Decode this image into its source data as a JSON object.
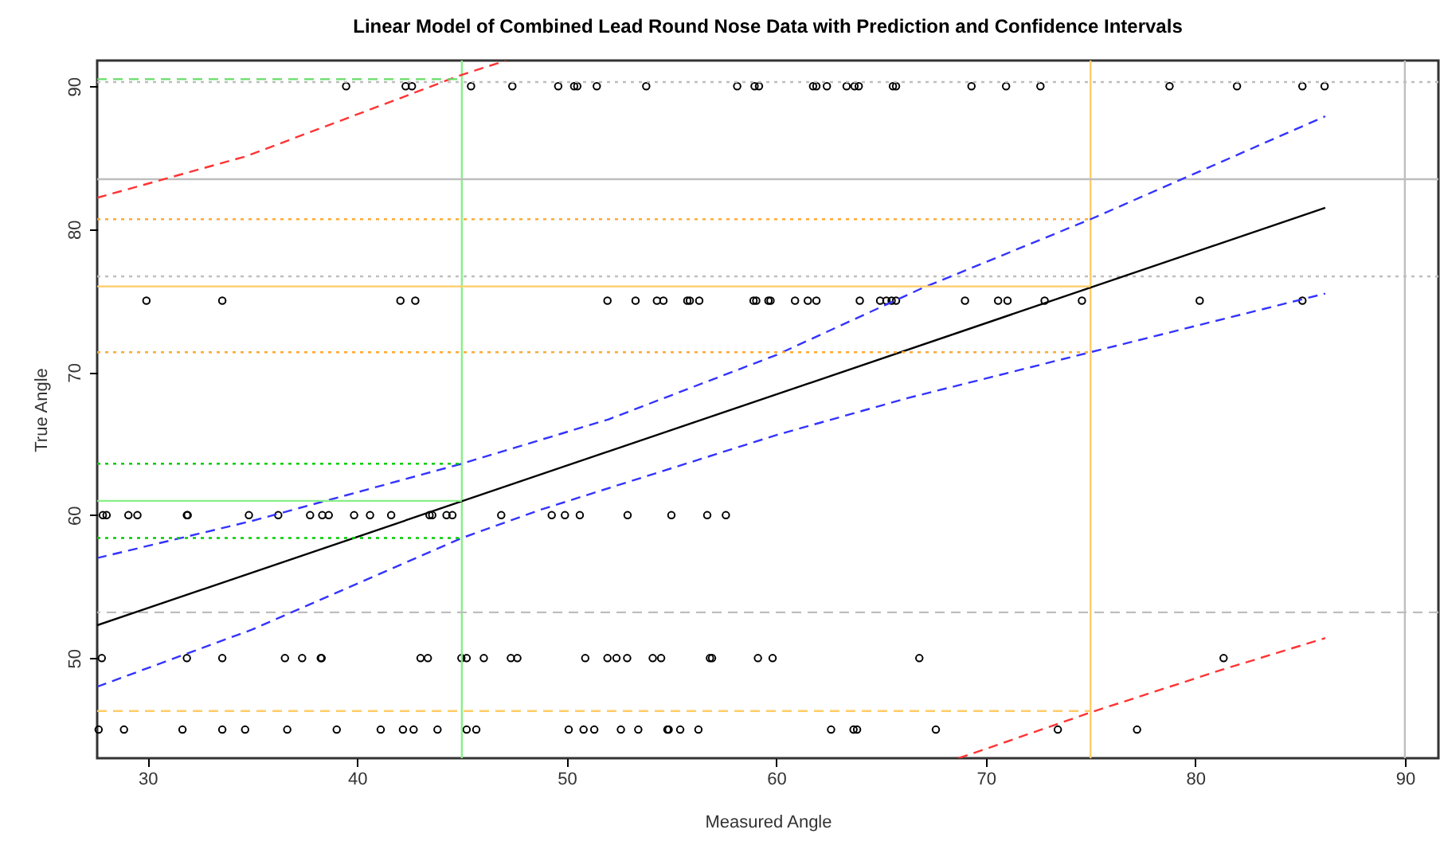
{
  "chart_data": {
    "type": "scatter",
    "title": "Linear Model of Combined Lead Round Nose Data with Prediction and Confidence Intervals",
    "xlabel": "Measured Angle",
    "ylabel": "True Angle",
    "xlim": [
      27.6,
      91.6
    ],
    "ylim": [
      43,
      91.8
    ],
    "xticks": [
      30,
      40,
      50,
      60,
      70,
      80,
      90
    ],
    "yticks": [
      50,
      60,
      70,
      80,
      90
    ],
    "grid": false,
    "series": [
      {
        "marker": "circle",
        "color": "#000000",
        "x": [
          39.48,
          42.32,
          42.62,
          45.44,
          47.41,
          49.6,
          50.36,
          50.51,
          51.44,
          53.8,
          58.14,
          58.97,
          59.18,
          61.76,
          61.92,
          62.42,
          63.36,
          63.74,
          63.94,
          65.57,
          65.72,
          69.32,
          70.97,
          72.61,
          78.77,
          81.99,
          85.11,
          86.17,
          29.95,
          33.57,
          42.07,
          42.78,
          51.95,
          53.29,
          54.31,
          54.62,
          55.76,
          55.88,
          56.33,
          58.92,
          59.05,
          59.63,
          59.73,
          60.9,
          61.51,
          61.92,
          63.99,
          64.96,
          65.26,
          65.51,
          65.72,
          69.01,
          70.59,
          71.04,
          72.81,
          74.59,
          80.21,
          85.11,
          27.87,
          28.05,
          29.09,
          29.52,
          31.88,
          31.92,
          34.84,
          36.24,
          37.76,
          38.34,
          38.65,
          39.86,
          40.62,
          41.63,
          43.46,
          43.59,
          44.27,
          44.55,
          46.88,
          49.29,
          49.92,
          50.63,
          52.91,
          55.0,
          56.71,
          57.6,
          27.82,
          31.88,
          33.57,
          36.56,
          37.38,
          38.27,
          38.31,
          43.03,
          43.38,
          44.98,
          45.23,
          46.05,
          47.34,
          47.65,
          50.89,
          51.95,
          52.38,
          52.89,
          54.11,
          54.51,
          56.84,
          56.94,
          59.13,
          59.83,
          66.83,
          81.35,
          27.67,
          28.88,
          31.67,
          33.57,
          34.66,
          36.67,
          39.03,
          41.13,
          42.19,
          42.7,
          43.84,
          45.23,
          45.69,
          50.1,
          50.81,
          51.32,
          52.59,
          53.42,
          54.81,
          54.87,
          55.42,
          56.29,
          62.62,
          63.69,
          63.86,
          67.62,
          73.44,
          77.22
        ],
        "values": [
          90,
          90,
          90,
          90,
          90,
          90,
          90,
          90,
          90,
          90,
          90,
          90,
          90,
          90,
          90,
          90,
          90,
          90,
          90,
          90,
          90,
          90,
          90,
          90,
          90,
          90,
          90,
          90,
          75,
          75,
          75,
          75,
          75,
          75,
          75,
          75,
          75,
          75,
          75,
          75,
          75,
          75,
          75,
          75,
          75,
          75,
          75,
          75,
          75,
          75,
          75,
          75,
          75,
          75,
          75,
          75,
          75,
          75,
          60,
          60,
          60,
          60,
          60,
          60,
          60,
          60,
          60,
          60,
          60,
          60,
          60,
          60,
          60,
          60,
          60,
          60,
          60,
          60,
          60,
          60,
          60,
          60,
          60,
          60,
          50,
          50,
          50,
          50,
          50,
          50,
          50,
          50,
          50,
          50,
          50,
          50,
          50,
          50,
          50,
          50,
          50,
          50,
          50,
          50,
          50,
          50,
          50,
          50,
          50,
          50,
          45,
          45,
          45,
          45,
          45,
          45,
          45,
          45,
          45,
          45,
          45,
          45,
          45,
          45,
          45,
          45,
          45,
          45,
          45,
          45,
          45,
          45,
          45,
          45,
          45,
          45,
          45,
          45
        ]
      },
      {
        "type": "line",
        "line_style": "solid",
        "color": "#000000",
        "x": [
          27.6,
          86.2
        ],
        "values": [
          52.3,
          81.5
        ]
      },
      {
        "type": "line",
        "line_style": "dashed",
        "color": "#3333ff",
        "x": [
          27.6,
          35,
          45,
          52,
          60,
          67,
          75,
          86.2
        ],
        "values": [
          57.0,
          59.6,
          63.6,
          66.7,
          71.2,
          75.9,
          80.7,
          87.9
        ]
      },
      {
        "type": "line",
        "line_style": "dashed",
        "color": "#3333ff",
        "x": [
          27.6,
          35,
          45,
          48.8,
          60,
          66.3,
          75,
          86.2
        ],
        "values": [
          48.0,
          52.0,
          58.4,
          60.4,
          65.6,
          68.2,
          71.4,
          75.5
        ]
      },
      {
        "type": "line",
        "line_style": "dashed",
        "color": "#ff3333",
        "x": [
          27.6,
          34.7,
          42.3,
          44.8,
          47.1
        ],
        "values": [
          82.2,
          85.1,
          89.3,
          90.7,
          91.8
        ]
      },
      {
        "type": "line",
        "line_style": "dashed",
        "color": "#ff3333",
        "x": [
          68.7,
          70.1,
          75,
          81.3,
          86.2
        ],
        "values": [
          43.0,
          43.7,
          46.2,
          49.2,
          51.4
        ]
      },
      {
        "type": "line",
        "line_style": "solid",
        "color": "#88ee88",
        "x": [
          27.6,
          45
        ],
        "values": [
          61,
          61
        ]
      },
      {
        "type": "line",
        "line_style": "dotted",
        "color": "#00cc00",
        "x": [
          27.6,
          45
        ],
        "values": [
          63.6,
          63.6
        ]
      },
      {
        "type": "line",
        "line_style": "dotted",
        "color": "#00cc00",
        "x": [
          27.6,
          45
        ],
        "values": [
          58.4,
          58.4
        ]
      },
      {
        "type": "line",
        "line_style": "dashed",
        "color": "#66dd66",
        "x": [
          27.6,
          45
        ],
        "values": [
          90.5,
          90.5
        ]
      },
      {
        "type": "line",
        "line_style": "solid",
        "color": "#ffcc66",
        "x": [
          27.6,
          75
        ],
        "values": [
          76,
          76
        ]
      },
      {
        "type": "line",
        "line_style": "dotted",
        "color": "#ffaa33",
        "x": [
          27.6,
          75
        ],
        "values": [
          80.7,
          80.7
        ]
      },
      {
        "type": "line",
        "line_style": "dotted",
        "color": "#ffaa33",
        "x": [
          27.6,
          75
        ],
        "values": [
          71.4,
          71.4
        ]
      },
      {
        "type": "line",
        "line_style": "dashed",
        "color": "#ffcc66",
        "x": [
          27.6,
          75
        ],
        "values": [
          46.3,
          46.3
        ]
      }
    ],
    "ref_lines": [
      {
        "axis": "x",
        "value": 45,
        "color": "#88ee88",
        "line_style": "solid"
      },
      {
        "axis": "x",
        "value": 75,
        "color": "#ffcc66",
        "line_style": "solid"
      },
      {
        "axis": "x",
        "value": 90,
        "color": "#bebebe",
        "line_style": "solid"
      },
      {
        "axis": "y",
        "value": 83.5,
        "color": "#bebebe",
        "line_style": "solid"
      },
      {
        "axis": "y",
        "value": 90.3,
        "color": "#bebebe",
        "line_style": "dotted"
      },
      {
        "axis": "y",
        "value": 76.7,
        "color": "#bebebe",
        "line_style": "dotted"
      },
      {
        "axis": "y",
        "value": 53.2,
        "color": "#bebebe",
        "line_style": "dashed"
      }
    ]
  }
}
